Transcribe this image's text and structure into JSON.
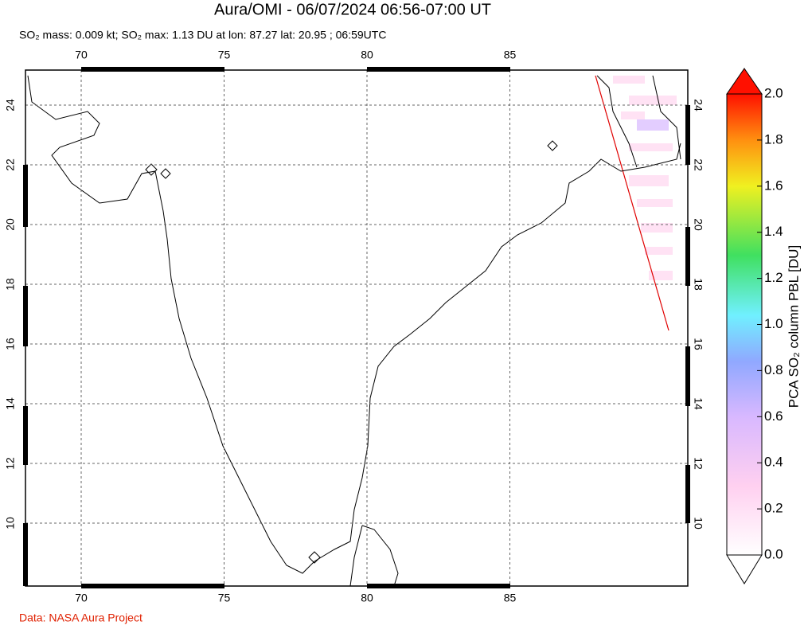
{
  "header": {
    "title": "Aura/OMI - 06/07/2024 06:56-07:00 UT",
    "subtitle": "SO₂ mass: 0.009 kt; SO₂ max: 1.13 DU at lon: 87.27 lat: 20.95 ; 06:59UTC"
  },
  "map": {
    "lon_ticks": [
      70,
      75,
      80,
      85
    ],
    "lat_ticks": [
      10,
      12,
      14,
      16,
      18,
      20,
      22,
      24
    ],
    "grid": true
  },
  "colorbar": {
    "label": "PCA SO₂ column PBL [DU]",
    "ticks": [
      {
        "value": 0,
        "label": "0.0"
      },
      {
        "value": 0.2,
        "label": "0.2"
      },
      {
        "value": 0.4,
        "label": "0.4"
      },
      {
        "value": 0.6,
        "label": "0.6"
      },
      {
        "value": 0.8,
        "label": "0.8"
      },
      {
        "value": 1.0,
        "label": "1.0"
      },
      {
        "value": 1.2,
        "label": "1.2"
      },
      {
        "value": 1.4,
        "label": "1.4"
      },
      {
        "value": 1.6,
        "label": "1.6"
      },
      {
        "value": 1.8,
        "label": "1.8"
      },
      {
        "value": 2.0,
        "label": "2.0"
      }
    ]
  },
  "footer": {
    "credit": "Data: NASA Aura Project"
  }
}
